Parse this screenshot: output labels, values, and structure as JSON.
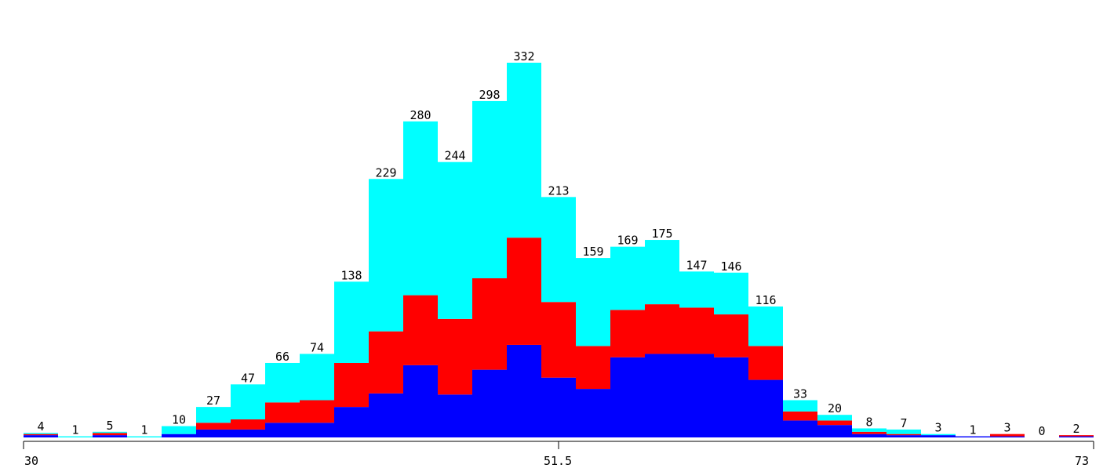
{
  "chart_data": {
    "type": "bar",
    "subtype": "stacked-histogram",
    "x_range": [
      30,
      73
    ],
    "x_ticks": [
      "30",
      "51.5",
      "73"
    ],
    "bin_count": 31,
    "totals": [
      4,
      1,
      5,
      1,
      10,
      27,
      47,
      66,
      74,
      138,
      229,
      280,
      244,
      298,
      332,
      213,
      159,
      169,
      175,
      147,
      146,
      116,
      33,
      20,
      8,
      7,
      3,
      1,
      3,
      0,
      2
    ],
    "series": [
      {
        "color": "#0000ff",
        "values": [
          2,
          0,
          2,
          0,
          3,
          7,
          7,
          13,
          13,
          27,
          39,
          64,
          38,
          60,
          82,
          53,
          43,
          71,
          74,
          74,
          71,
          51,
          15,
          11,
          3,
          2,
          2,
          1,
          1,
          0,
          1
        ]
      },
      {
        "color": "#ff0000",
        "values": [
          1,
          0,
          2,
          0,
          0,
          6,
          9,
          18,
          20,
          39,
          55,
          62,
          67,
          81,
          95,
          67,
          38,
          42,
          44,
          41,
          38,
          30,
          8,
          4,
          2,
          1,
          0,
          0,
          2,
          0,
          1
        ]
      },
      {
        "color": "#00ffff",
        "values": [
          1,
          1,
          1,
          1,
          7,
          14,
          31,
          35,
          41,
          72,
          135,
          154,
          139,
          157,
          155,
          93,
          78,
          56,
          57,
          32,
          37,
          35,
          10,
          5,
          3,
          4,
          1,
          0,
          0,
          0,
          0
        ]
      }
    ],
    "y_max": 332,
    "grid": false,
    "legend": "none"
  }
}
